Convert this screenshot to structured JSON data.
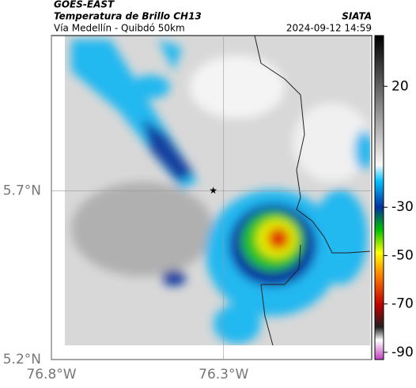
{
  "chart_data": {
    "type": "map",
    "title": "GOES-EAST",
    "subtitle": "Temperatura de Brillo CH13",
    "caption": "Vía Medellín - Quibdó 50km",
    "source": "SIATA",
    "timestamp": "2024-09-12 14:59",
    "xlim": [
      -76.8,
      -75.87
    ],
    "ylim": [
      5.2,
      6.16
    ],
    "xticks": [
      {
        "value": -76.8,
        "label": "76.8°W"
      },
      {
        "value": -76.3,
        "label": "76.3°W"
      }
    ],
    "yticks": [
      {
        "value": 5.2,
        "label": "5.2°N"
      },
      {
        "value": 5.7,
        "label": "5.7°N"
      }
    ],
    "grid": true,
    "colorbar": {
      "lim": [
        -93,
        41
      ],
      "ticks": [
        20,
        -30,
        -50,
        -70,
        -90
      ]
    },
    "marker": {
      "x": -76.33,
      "y": 5.7
    }
  }
}
